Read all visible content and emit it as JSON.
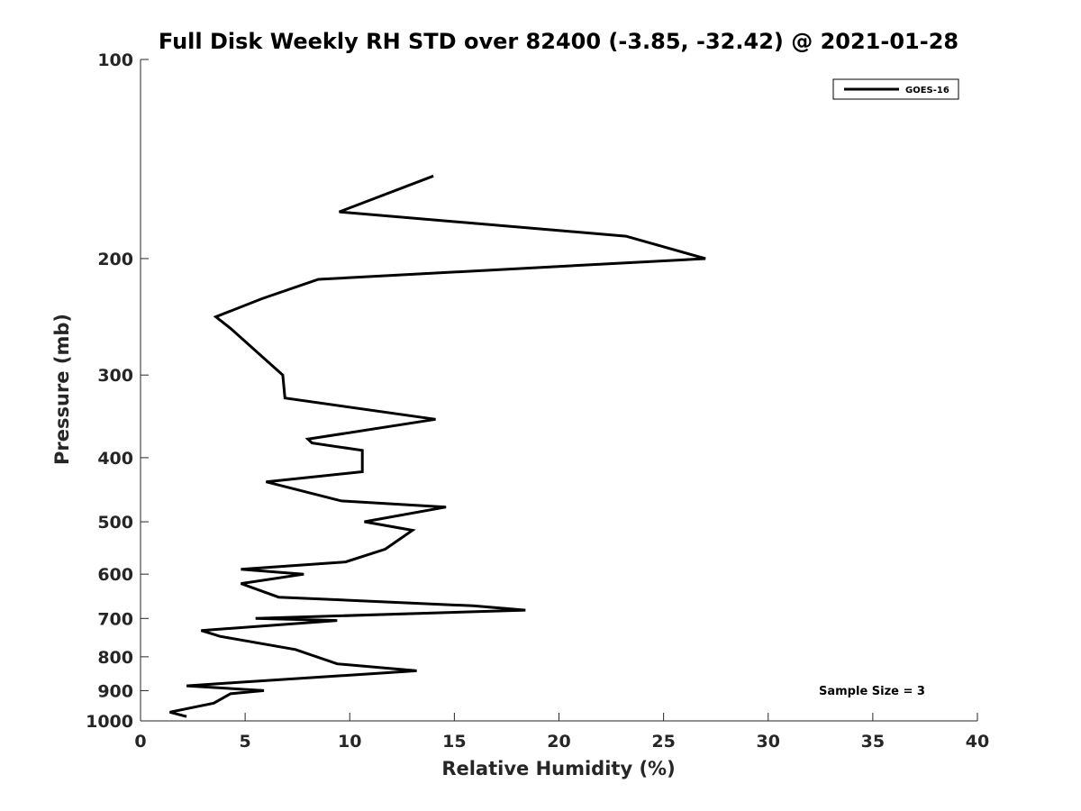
{
  "chart_data": {
    "type": "line",
    "title": "Full Disk Weekly RH STD over 82400 (-3.85, -32.42) @ 2021-01-28",
    "xlabel": "Relative Humidity (%)",
    "ylabel": "Pressure (mb)",
    "xlim": [
      0,
      40
    ],
    "ylim": [
      100,
      1000
    ],
    "y_scale": "log",
    "y_reversed": true,
    "grid": false,
    "legend_position": "top-right",
    "x_ticks": [
      0,
      5,
      10,
      15,
      20,
      25,
      30,
      35,
      40
    ],
    "y_ticks": [
      100,
      200,
      300,
      400,
      500,
      600,
      700,
      800,
      900,
      1000
    ],
    "annotation": "Sample Size = 3",
    "series": [
      {
        "name": "GOES-16",
        "color": "#000000",
        "x": [
          14.0,
          9.5,
          23.2,
          27.0,
          8.5,
          5.8,
          3.6,
          4.3,
          6.8,
          6.9,
          14.1,
          8.0,
          8.2,
          10.6,
          10.6,
          6.0,
          9.6,
          14.6,
          10.7,
          13.0,
          11.7,
          9.8,
          4.8,
          7.8,
          4.8,
          6.6,
          15.9,
          18.4,
          5.5,
          9.4,
          2.9,
          3.8,
          7.4,
          9.4,
          13.2,
          4.6,
          2.2,
          5.9,
          4.3,
          3.5,
          1.4,
          2.2
        ],
        "y": [
          150,
          170,
          185,
          200,
          215,
          230,
          245,
          255,
          300,
          325,
          350,
          375,
          380,
          390,
          420,
          435,
          465,
          475,
          500,
          515,
          550,
          575,
          590,
          600,
          620,
          650,
          670,
          680,
          700,
          705,
          730,
          745,
          780,
          820,
          840,
          875,
          885,
          900,
          910,
          940,
          970,
          985
        ]
      }
    ]
  }
}
